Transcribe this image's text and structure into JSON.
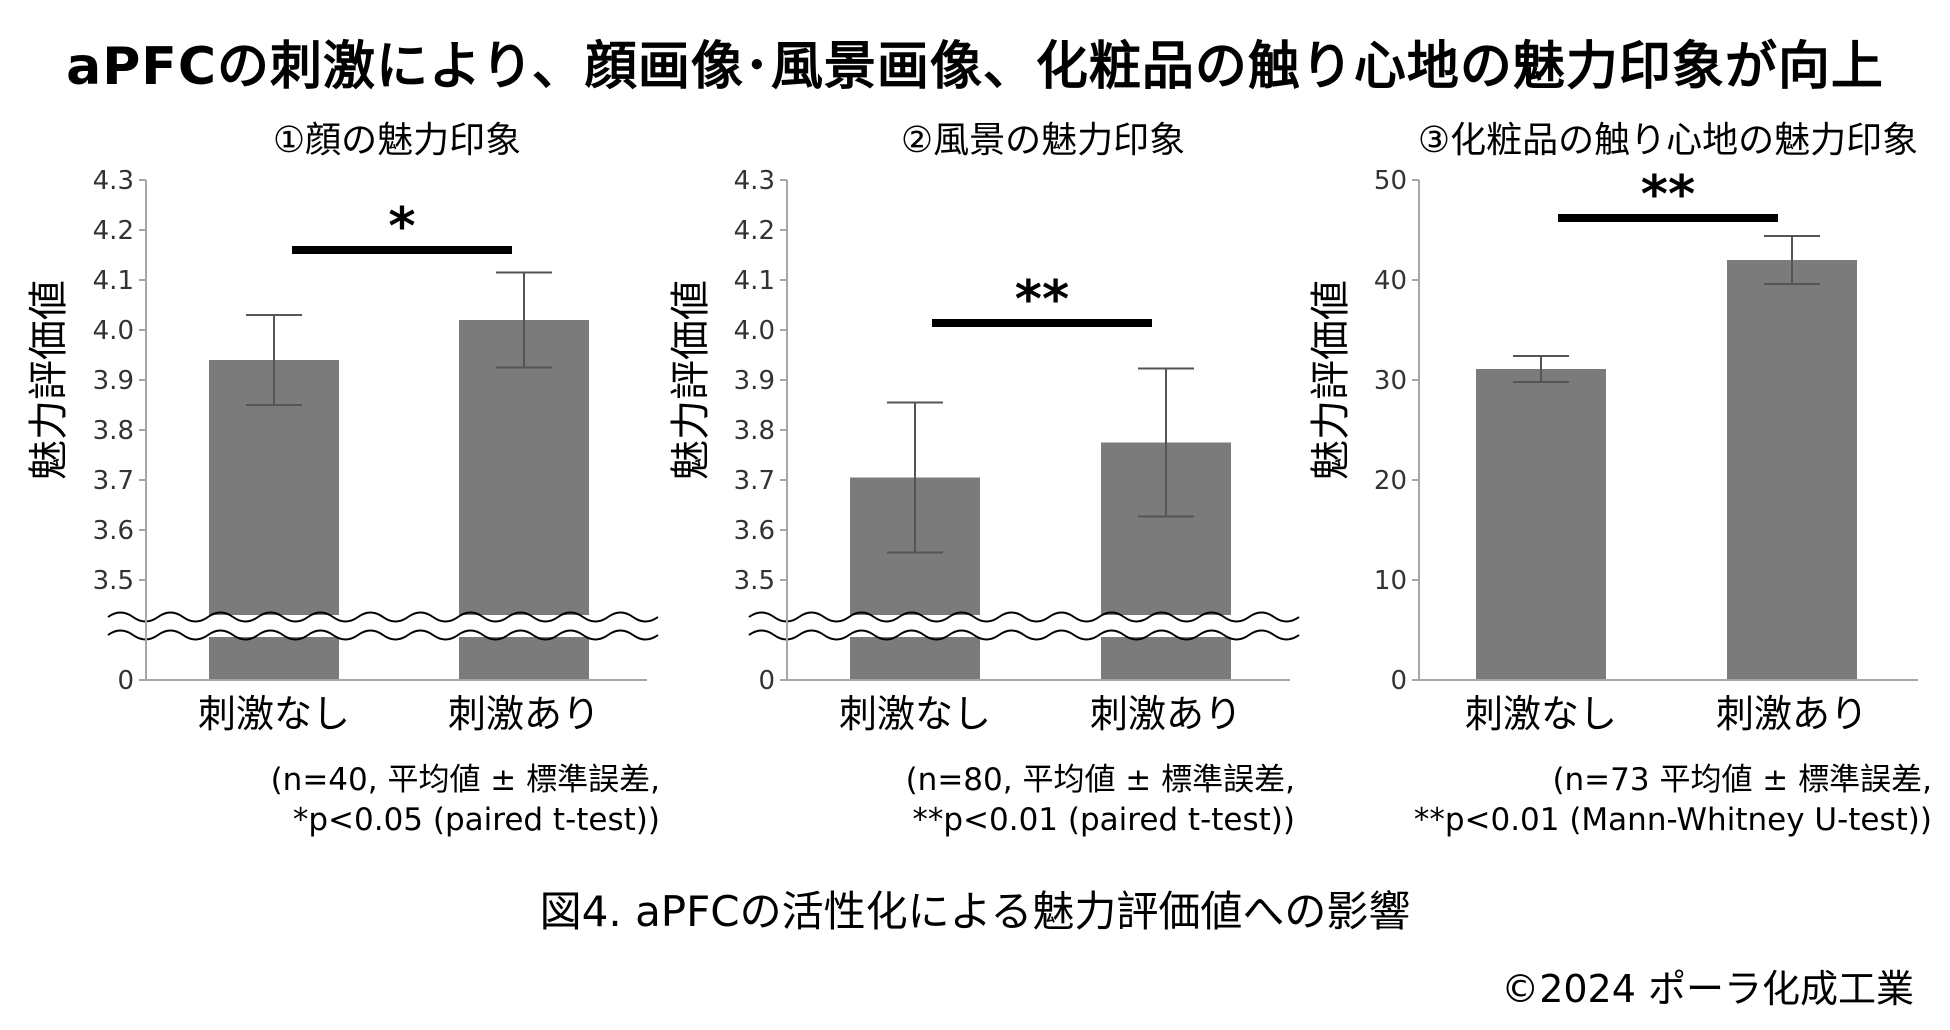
{
  "title": "aPFCの刺激により、顔画像･風景画像、化粧品の触り心地の魅力印象が向上",
  "caption": "図4. aPFCの活性化による魅力評価値への影響",
  "copyright": "©2024 ポーラ化成工業",
  "colors": {
    "bar": "#7b7b7b",
    "axis": "#a6a6a6",
    "text": "#000000"
  },
  "chart_data": [
    {
      "type": "bar",
      "title": "①顔の魅力印象",
      "ylabel": "魅力評価値",
      "categories": [
        "刺激なし",
        "刺激あり"
      ],
      "values": [
        3.94,
        4.02
      ],
      "error": [
        0.09,
        0.095
      ],
      "yticks": [
        "4.3",
        "4.2",
        "4.1",
        "4.0",
        "3.9",
        "3.8",
        "3.7",
        "3.6",
        "3.5",
        "0"
      ],
      "ylim": [
        3.5,
        4.3
      ],
      "axis_break": true,
      "significance": "*",
      "note": [
        "(n=40, 平均値 ± 標準誤差,",
        "*p<0.05 (paired t-test))"
      ]
    },
    {
      "type": "bar",
      "title": "②風景の魅力印象",
      "ylabel": "魅力評価値",
      "categories": [
        "刺激なし",
        "刺激あり"
      ],
      "values": [
        3.705,
        3.775
      ],
      "error": [
        0.15,
        0.148
      ],
      "yticks": [
        "4.3",
        "4.2",
        "4.1",
        "4.0",
        "3.9",
        "3.8",
        "3.7",
        "3.6",
        "3.5",
        "0"
      ],
      "ylim": [
        3.5,
        4.3
      ],
      "axis_break": true,
      "significance": "**",
      "note": [
        "(n=80, 平均値 ± 標準誤差,",
        "**p<0.01 (paired t-test))"
      ]
    },
    {
      "type": "bar",
      "title": "③化粧品の触り心地の魅力印象",
      "ylabel": "魅力評価値",
      "categories": [
        "刺激なし",
        "刺激あり"
      ],
      "values": [
        31.1,
        42.0
      ],
      "error": [
        1.3,
        2.4
      ],
      "yticks": [
        "50",
        "40",
        "30",
        "20",
        "10",
        "0"
      ],
      "ylim": [
        0,
        50
      ],
      "axis_break": false,
      "significance": "**",
      "note": [
        "(n=73 平均値 ± 標準誤差,",
        "**p<0.01 (Mann-Whitney U-test))"
      ]
    }
  ]
}
